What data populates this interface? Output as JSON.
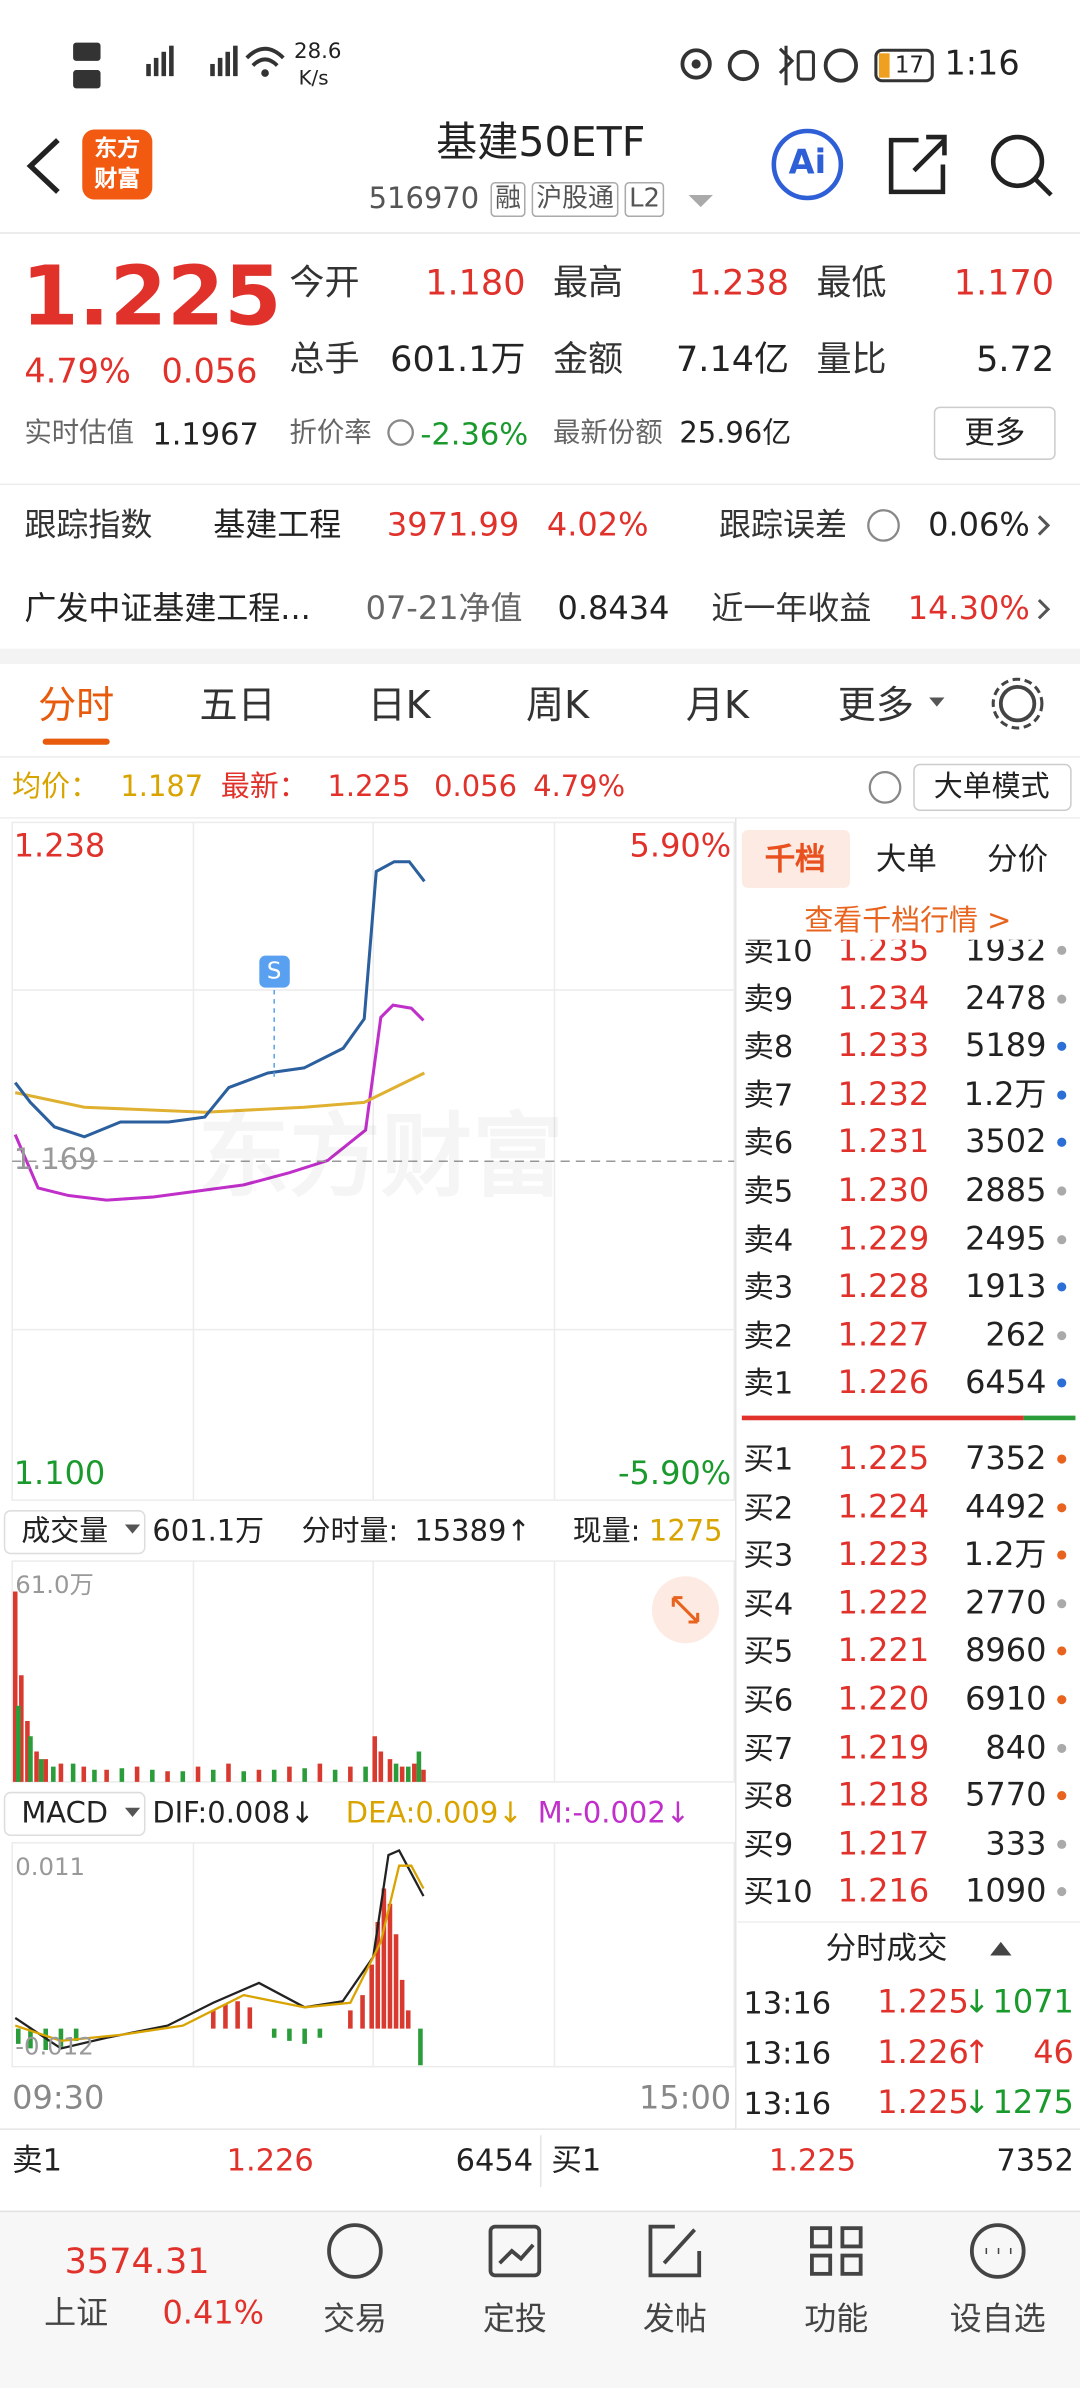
{
  "status_bar": {
    "net_speed": "28.6",
    "net_unit": "K/s",
    "battery": "17",
    "time": "1:16"
  },
  "header": {
    "logo": [
      "东方",
      "财富"
    ],
    "title": "基建50ETF",
    "code": "516970",
    "badges": [
      "融",
      "沪股通",
      "L2"
    ],
    "ai": "Ai"
  },
  "quote": {
    "price": "1.225",
    "change_pct": "4.79%",
    "change": "0.056",
    "stats": [
      [
        {
          "label": "今开",
          "value": "1.180"
        },
        {
          "label": "最高",
          "value": "1.238"
        },
        {
          "label": "最低",
          "value": "1.170"
        }
      ],
      [
        {
          "label": "总手",
          "value": "601.1万"
        },
        {
          "label": "金额",
          "value": "7.14亿"
        },
        {
          "label": "量比",
          "value": "5.72"
        }
      ]
    ],
    "estimate_label": "实时估值",
    "estimate": "1.1967",
    "discount_label": "折价率",
    "discount": "-2.36%",
    "shares_label": "最新份额",
    "shares": "25.96亿",
    "more": "更多"
  },
  "tracking": {
    "label": "跟踪指数",
    "index": "基建工程",
    "index_value": "3971.99",
    "index_pct": "4.02%",
    "error_label": "跟踪误差",
    "error": "0.06%"
  },
  "fund": {
    "name": "广发中证基建工程...",
    "nav_label": "07-21净值",
    "nav": "0.8434",
    "return_label": "近一年收益",
    "return": "14.30%"
  },
  "tabs": [
    "分时",
    "五日",
    "日K",
    "周K",
    "月K",
    "更多"
  ],
  "summary": {
    "avg_label": "均价：",
    "avg": "1.187",
    "last_label": "最新：",
    "last": "1.225",
    "change": "0.056",
    "pct": "4.79%",
    "mode": "大单模式"
  },
  "chart": {
    "watermark": "东方财富",
    "ymax_label": "1.238",
    "ymax_pct": "5.90%",
    "ref_label": "1.169",
    "ymin_label": "1.100",
    "ymin_pct": "-5.90%",
    "signal": "S",
    "start": "09:30",
    "end": "15:00",
    "ylim": [
      1.1,
      1.238
    ],
    "xlim": [
      0,
      240
    ],
    "ref": 1.169,
    "price": {
      "x": [
        1,
        6,
        14,
        24,
        36,
        52,
        64,
        72,
        85,
        97,
        110,
        117,
        121,
        127,
        132,
        137
      ],
      "values": [
        1.185,
        1.181,
        1.176,
        1.174,
        1.177,
        1.177,
        1.178,
        1.184,
        1.187,
        1.188,
        1.192,
        1.198,
        1.228,
        1.23,
        1.23,
        1.226
      ],
      "color": "#2b5f9e"
    },
    "avg": {
      "x": [
        1,
        24,
        64,
        97,
        117,
        137
      ],
      "values": [
        1.183,
        1.18,
        1.179,
        1.18,
        1.181,
        1.187
      ],
      "color": "#e0b030"
    }
  },
  "volume": {
    "label": "成交量",
    "total": "601.1万",
    "tick_label": "分时量:",
    "tick": "15389↑",
    "now_label": "现量:",
    "now": "1275",
    "max": "61.0万"
  },
  "macd": {
    "label": "MACD",
    "dif": "DIF:0.008↓",
    "dea": "DEA:0.009↓",
    "m": "M:-0.002↓",
    "max": "0.011",
    "min": "-0.012"
  },
  "orderbook": {
    "tabs": [
      "千档",
      "大单",
      "分价"
    ],
    "link": "查看千档行情 >",
    "asks": [
      {
        "label": "卖10",
        "price": "1.235",
        "volume": "1932",
        "dot": "gray"
      },
      {
        "label": "卖9",
        "price": "1.234",
        "volume": "2478",
        "dot": "gray"
      },
      {
        "label": "卖8",
        "price": "1.233",
        "volume": "5189",
        "dot": "blue"
      },
      {
        "label": "卖7",
        "price": "1.232",
        "volume": "1.2万",
        "dot": "blue"
      },
      {
        "label": "卖6",
        "price": "1.231",
        "volume": "3502",
        "dot": "blue"
      },
      {
        "label": "卖5",
        "price": "1.230",
        "volume": "2885",
        "dot": "gray"
      },
      {
        "label": "卖4",
        "price": "1.229",
        "volume": "2495",
        "dot": "gray"
      },
      {
        "label": "卖3",
        "price": "1.228",
        "volume": "1913",
        "dot": "blue"
      },
      {
        "label": "卖2",
        "price": "1.227",
        "volume": "262",
        "dot": "gray"
      },
      {
        "label": "卖1",
        "price": "1.226",
        "volume": "6454",
        "dot": "blue"
      }
    ],
    "bids": [
      {
        "label": "买1",
        "price": "1.225",
        "volume": "7352",
        "dot": "orange"
      },
      {
        "label": "买2",
        "price": "1.224",
        "volume": "4492",
        "dot": "orange"
      },
      {
        "label": "买3",
        "price": "1.223",
        "volume": "1.2万",
        "dot": "orange"
      },
      {
        "label": "买4",
        "price": "1.222",
        "volume": "2770",
        "dot": "gray"
      },
      {
        "label": "买5",
        "price": "1.221",
        "volume": "8960",
        "dot": "orange"
      },
      {
        "label": "买6",
        "price": "1.220",
        "volume": "6910",
        "dot": "orange"
      },
      {
        "label": "买7",
        "price": "1.219",
        "volume": "840",
        "dot": "gray"
      },
      {
        "label": "买8",
        "price": "1.218",
        "volume": "5770",
        "dot": "orange"
      },
      {
        "label": "买9",
        "price": "1.217",
        "volume": "333",
        "dot": "gray"
      },
      {
        "label": "买10",
        "price": "1.216",
        "volume": "1090",
        "dot": "gray"
      }
    ]
  },
  "trades": {
    "title": "分时成交",
    "rows": [
      {
        "time": "13:16",
        "price": "1.225",
        "arrow": "↓",
        "volume": "1071"
      },
      {
        "time": "13:16",
        "price": "1.226",
        "arrow": "↑",
        "volume": "46"
      },
      {
        "time": "13:16",
        "price": "1.225",
        "arrow": "↓",
        "volume": "1275"
      }
    ]
  },
  "best": {
    "ask_label": "卖1",
    "ask": "1.226",
    "ask_vol": "6454",
    "bid_label": "买1",
    "bid": "1.225",
    "bid_vol": "7352"
  },
  "nav": {
    "index_value": "3574.31",
    "index_name": "上证",
    "index_pct": "0.41%",
    "items": [
      "交易",
      "定投",
      "发帖",
      "功能",
      "设自选"
    ]
  }
}
